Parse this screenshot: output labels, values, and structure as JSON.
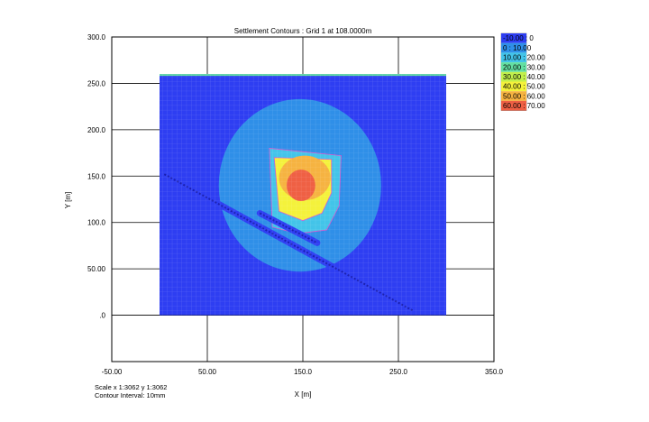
{
  "chart_data": {
    "type": "heatmap",
    "title": "Settlement Contours : Grid 1 at 108.0000m",
    "xlabel": "X [m]",
    "ylabel": "Y [m]",
    "xlim": [
      -50,
      350
    ],
    "ylim": [
      -50,
      300
    ],
    "x_ticks": [
      {
        "value": -50,
        "label": "-50.00"
      },
      {
        "value": 50,
        "label": "50.00"
      },
      {
        "value": 150,
        "label": "150.0"
      },
      {
        "value": 250,
        "label": "250.0"
      },
      {
        "value": 350,
        "label": "350.0"
      }
    ],
    "y_ticks": [
      {
        "value": 300,
        "label": "300.0"
      },
      {
        "value": 250,
        "label": "250.0"
      },
      {
        "value": 200,
        "label": "200.0"
      },
      {
        "value": 150,
        "label": "150.0"
      },
      {
        "value": 100,
        "label": "100.0"
      },
      {
        "value": 50,
        "label": "50.00"
      },
      {
        "value": 0,
        "label": ".0"
      }
    ],
    "grid": true,
    "legend_position": "right",
    "units": "mm",
    "grid_extent": {
      "x": [
        0,
        300
      ],
      "y": [
        0,
        260
      ]
    },
    "contour_levels": [
      {
        "label": "-10.00 : 0",
        "color": "#2e3ef2"
      },
      {
        "label": "0 : 10.00",
        "color": "#2f8fe8"
      },
      {
        "label": "10.00 : 20.00",
        "color": "#43c4e9"
      },
      {
        "label": "20.00 : 30.00",
        "color": "#63dfa2"
      },
      {
        "label": "30.00 : 40.00",
        "color": "#c2f04c"
      },
      {
        "label": "40.00 : 50.00",
        "color": "#f4f23b"
      },
      {
        "label": "50.00 : 60.00",
        "color": "#f6b341"
      },
      {
        "label": "60.00 : 70.00",
        "color": "#ef6044"
      }
    ],
    "zones": [
      {
        "shape": "ellipse",
        "cx": 147,
        "cy": 140,
        "rx": 85,
        "ry": 93,
        "level": 1
      },
      {
        "shape": "polygon",
        "points": [
          [
            115,
            180
          ],
          [
            190,
            172
          ],
          [
            188,
            118
          ],
          [
            175,
            92
          ],
          [
            145,
            88
          ],
          [
            118,
            95
          ]
        ],
        "level": 2
      },
      {
        "shape": "polygon",
        "points": [
          [
            120,
            170
          ],
          [
            180,
            168
          ],
          [
            180,
            132
          ],
          [
            170,
            110
          ],
          [
            150,
            102
          ],
          [
            125,
            112
          ]
        ],
        "level": 5
      },
      {
        "shape": "ellipse",
        "cx": 152,
        "cy": 148,
        "rx": 27,
        "ry": 24,
        "level": 6
      },
      {
        "shape": "ellipse",
        "cx": 148,
        "cy": 140,
        "rx": 15,
        "ry": 17,
        "level": 7
      }
    ],
    "trenches": [
      {
        "from": [
          5,
          152
        ],
        "to": [
          265,
          5
        ],
        "level": 0
      },
      {
        "from": [
          105,
          110
        ],
        "to": [
          165,
          78
        ],
        "level": 0
      }
    ]
  },
  "footer": {
    "scale": "Scale x 1:3062  y 1:3062",
    "contour_interval": "Contour Interval: 10mm"
  }
}
